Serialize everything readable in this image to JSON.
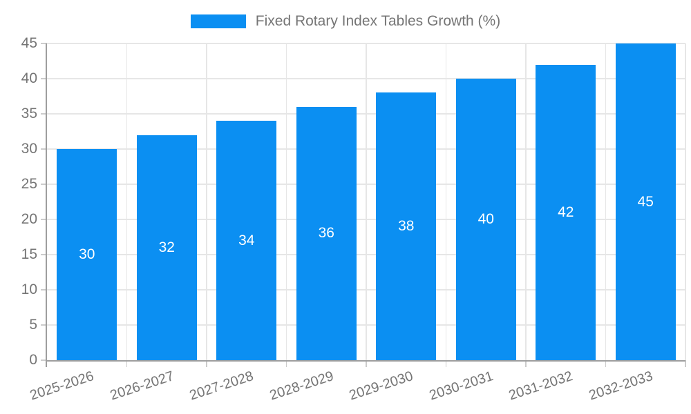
{
  "chart_data": {
    "type": "bar",
    "title": "Fixed Rotary Index Tables Growth (%)",
    "categories": [
      "2025-2026",
      "2026-2027",
      "2027-2028",
      "2028-2029",
      "2029-2030",
      "2030-2031",
      "2031-2032",
      "2032-2033"
    ],
    "values": [
      30,
      32,
      34,
      36,
      38,
      40,
      42,
      45
    ],
    "xlabel": "",
    "ylabel": "",
    "ylim": [
      0,
      45
    ],
    "ytick_step": 5,
    "ytick_labels": [
      "0",
      "5",
      "10",
      "15",
      "20",
      "25",
      "30",
      "35",
      "40",
      "45"
    ],
    "grid": true,
    "legend_position": "top",
    "bar_labels_inside": true
  },
  "colors": {
    "bar": "#0b8ff2",
    "bar_label": "#ffffff",
    "axis": "#9e9e9e",
    "grid": "#e6e6e6",
    "tick": "#cccccc",
    "text": "#757575",
    "background": "#ffffff"
  }
}
